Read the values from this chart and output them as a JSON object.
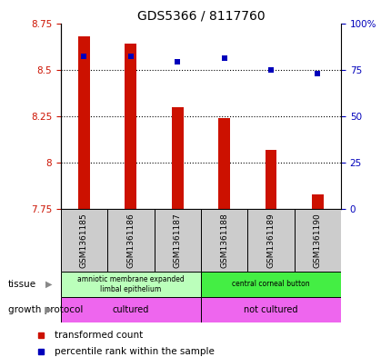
{
  "title": "GDS5366 / 8117760",
  "samples": [
    "GSM1361185",
    "GSM1361186",
    "GSM1361187",
    "GSM1361188",
    "GSM1361189",
    "GSM1361190"
  ],
  "red_values": [
    8.68,
    8.64,
    8.3,
    8.24,
    8.07,
    7.83
  ],
  "blue_values": [
    8.57,
    8.57,
    8.54,
    8.56,
    8.5,
    8.48
  ],
  "bar_bottom": 7.75,
  "ylim_left": [
    7.75,
    8.75
  ],
  "ylim_right": [
    0,
    100
  ],
  "yticks_left": [
    7.75,
    8.0,
    8.25,
    8.5,
    8.75
  ],
  "ytick_labels_left": [
    "7.75",
    "8",
    "8.25",
    "8.5",
    "8.75"
  ],
  "yticks_right": [
    0,
    25,
    50,
    75,
    100
  ],
  "ytick_labels_right": [
    "0",
    "25",
    "50",
    "75",
    "100%"
  ],
  "red_color": "#cc1100",
  "blue_color": "#0000bb",
  "dotted_lines": [
    8.0,
    8.25,
    8.5
  ],
  "tissue_groups": [
    {
      "label": "amniotic membrane expanded\nlimbal epithelium",
      "start": 0,
      "end": 3,
      "color": "#bbffbb"
    },
    {
      "label": "central corneal button",
      "start": 3,
      "end": 6,
      "color": "#44ee44"
    }
  ],
  "growth_groups": [
    {
      "label": "cultured",
      "start": 0,
      "end": 3,
      "color": "#ee66ee"
    },
    {
      "label": "not cultured",
      "start": 3,
      "end": 6,
      "color": "#ee66ee"
    }
  ],
  "tissue_label": "tissue",
  "growth_label": "growth protocol",
  "legend_red": "transformed count",
  "legend_blue": "percentile rank within the sample",
  "bg_color": "#ffffff",
  "sample_box_color": "#cccccc",
  "bar_width": 0.25
}
